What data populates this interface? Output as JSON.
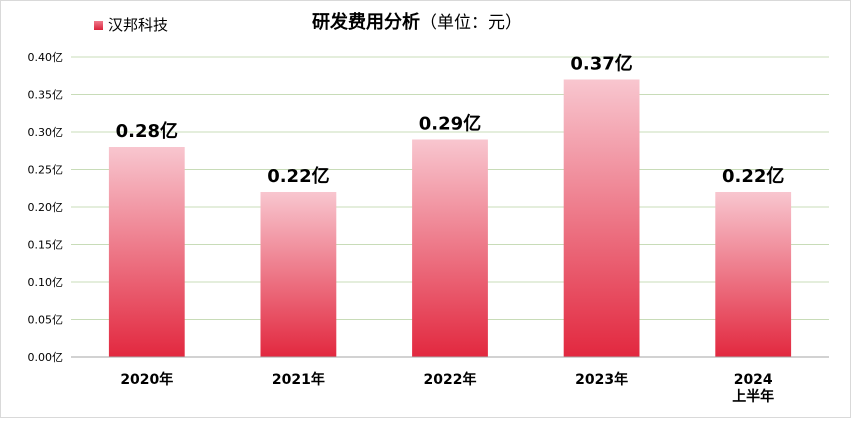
{
  "chart_data": {
    "type": "bar",
    "title": "研发费用分析",
    "subtitle": "（单位：元）",
    "legend": {
      "entries": [
        "汉邦科技"
      ],
      "placement": "top-left"
    },
    "categories": [
      [
        "2020年"
      ],
      [
        "2021年"
      ],
      [
        "2022年"
      ],
      [
        "2023年"
      ],
      [
        "2024",
        "上半年"
      ]
    ],
    "series": [
      {
        "name": "汉邦科技",
        "values": [
          0.28,
          0.22,
          0.29,
          0.37,
          0.22
        ],
        "data_labels": [
          "0.28亿",
          "0.22亿",
          "0.29亿",
          "0.37亿",
          "0.22亿"
        ]
      }
    ],
    "ylim": [
      0,
      0.4
    ],
    "y_ticks": [
      0,
      0.05,
      0.1,
      0.15,
      0.2,
      0.25,
      0.3,
      0.35,
      0.4
    ],
    "y_tick_labels": [
      "0.00亿",
      "0.05亿",
      "0.10亿",
      "0.15亿",
      "0.20亿",
      "0.25亿",
      "0.30亿",
      "0.35亿",
      "0.40亿"
    ],
    "grid": true,
    "colors": {
      "bar_top": "#f8c6cf",
      "bar_bottom": "#e2283f",
      "legend_top": "#f07a8c",
      "legend_bottom": "#d9223a",
      "grid": "#c8dcb8",
      "axis": "#a6a6a6",
      "text": "#000000"
    }
  }
}
